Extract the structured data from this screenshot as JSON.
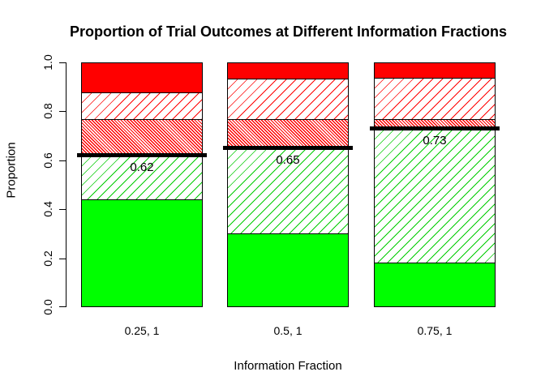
{
  "chart_data": {
    "type": "bar",
    "stacked": true,
    "title": "Proportion of Trial Outcomes at Different Information Fractions",
    "xlabel": "Information Fraction",
    "ylabel": "Proportion",
    "ylim": [
      0.0,
      1.0
    ],
    "ytick_labels": [
      "0.0",
      "0.2",
      "0.4",
      "0.6",
      "0.8",
      "1.0"
    ],
    "grid": false,
    "legend": "none",
    "categories": [
      "0.25, 1",
      "0.5, 1",
      "0.75, 1"
    ],
    "series": [
      {
        "name": "solid-green",
        "fill": "solid",
        "color": "#00FF00",
        "values": [
          0.44,
          0.3,
          0.18
        ]
      },
      {
        "name": "hatched-green",
        "fill": "hatch-forward",
        "color": "#00CC00",
        "values": [
          0.18,
          0.35,
          0.55
        ]
      },
      {
        "name": "dense-hatched-red",
        "fill": "hatch-dense",
        "color": "#FF0000",
        "values": [
          0.15,
          0.12,
          0.04
        ]
      },
      {
        "name": "hatched-red",
        "fill": "hatch-forward",
        "color": "#FF0000",
        "values": [
          0.11,
          0.165,
          0.17
        ]
      },
      {
        "name": "solid-red",
        "fill": "solid",
        "color": "#FF0000",
        "values": [
          0.12,
          0.065,
          0.06
        ]
      }
    ],
    "threshold_lines": [
      {
        "category": "0.25, 1",
        "value": 0.62,
        "label": "0.62",
        "color": "#000000"
      },
      {
        "category": "0.5, 1",
        "value": 0.65,
        "label": "0.65",
        "color": "#000000"
      },
      {
        "category": "0.75, 1",
        "value": 0.73,
        "label": "0.73",
        "color": "#000000"
      }
    ]
  }
}
